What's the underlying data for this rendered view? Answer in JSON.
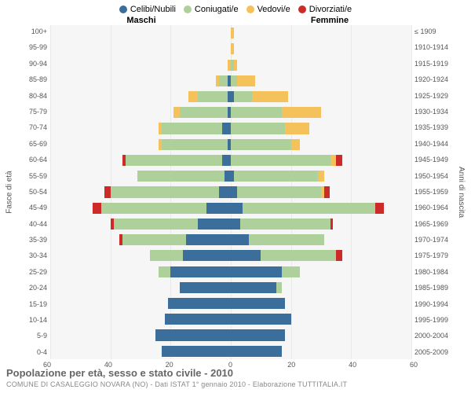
{
  "legend": {
    "items": [
      {
        "label": "Celibi/Nubili",
        "color": "#3b6e9a"
      },
      {
        "label": "Coniugati/e",
        "color": "#aed09b"
      },
      {
        "label": "Vedovi/e",
        "color": "#f5c15a"
      },
      {
        "label": "Divorziati/e",
        "color": "#cc2b27"
      }
    ]
  },
  "headers": {
    "male": "Maschi",
    "female": "Femmine"
  },
  "axis_titles": {
    "left": "Fasce di età",
    "right": "Anni di nascita"
  },
  "footer": {
    "title": "Popolazione per età, sesso e stato civile - 2010",
    "subtitle": "COMUNE DI CASALEGGIO NOVARA (NO) - Dati ISTAT 1° gennaio 2010 - Elaborazione TUTTITALIA.IT"
  },
  "x_axis": {
    "max": 60,
    "ticks": [
      60,
      40,
      20,
      0,
      20,
      40,
      60
    ]
  },
  "style": {
    "background": "#f6f6f6",
    "grid_color": "#e9e9e9",
    "bar_height_ratio": 0.7,
    "center_line_color": "#8aa9c7"
  },
  "rows": [
    {
      "age": "100+",
      "birth": "≤ 1909",
      "male": {
        "celibi": 0,
        "coniugati": 0,
        "vedovi": 0,
        "div": 0
      },
      "female": {
        "celibi": 0,
        "coniugati": 0,
        "vedovi": 1,
        "div": 0
      }
    },
    {
      "age": "95-99",
      "birth": "1910-1914",
      "male": {
        "celibi": 0,
        "coniugati": 0,
        "vedovi": 0,
        "div": 0
      },
      "female": {
        "celibi": 0,
        "coniugati": 0,
        "vedovi": 1,
        "div": 0
      }
    },
    {
      "age": "90-94",
      "birth": "1915-1919",
      "male": {
        "celibi": 0,
        "coniugati": 0,
        "vedovi": 1,
        "div": 0
      },
      "female": {
        "celibi": 0,
        "coniugati": 1,
        "vedovi": 1,
        "div": 0
      }
    },
    {
      "age": "85-89",
      "birth": "1920-1924",
      "male": {
        "celibi": 1,
        "coniugati": 3,
        "vedovi": 1,
        "div": 0
      },
      "female": {
        "celibi": 0,
        "coniugati": 2,
        "vedovi": 6,
        "div": 0
      }
    },
    {
      "age": "80-84",
      "birth": "1925-1929",
      "male": {
        "celibi": 1,
        "coniugati": 10,
        "vedovi": 3,
        "div": 0
      },
      "female": {
        "celibi": 1,
        "coniugati": 6,
        "vedovi": 12,
        "div": 0
      }
    },
    {
      "age": "75-79",
      "birth": "1930-1934",
      "male": {
        "celibi": 1,
        "coniugati": 16,
        "vedovi": 2,
        "div": 0
      },
      "female": {
        "celibi": 0,
        "coniugati": 17,
        "vedovi": 13,
        "div": 0
      }
    },
    {
      "age": "70-74",
      "birth": "1935-1939",
      "male": {
        "celibi": 3,
        "coniugati": 20,
        "vedovi": 1,
        "div": 0
      },
      "female": {
        "celibi": 0,
        "coniugati": 18,
        "vedovi": 8,
        "div": 0
      }
    },
    {
      "age": "65-69",
      "birth": "1940-1944",
      "male": {
        "celibi": 1,
        "coniugati": 22,
        "vedovi": 1,
        "div": 0
      },
      "female": {
        "celibi": 0,
        "coniugati": 20,
        "vedovi": 3,
        "div": 0
      }
    },
    {
      "age": "60-64",
      "birth": "1945-1949",
      "male": {
        "celibi": 3,
        "coniugati": 32,
        "vedovi": 0,
        "div": 1
      },
      "female": {
        "celibi": 0,
        "coniugati": 33,
        "vedovi": 2,
        "div": 2
      }
    },
    {
      "age": "55-59",
      "birth": "1950-1954",
      "male": {
        "celibi": 2,
        "coniugati": 29,
        "vedovi": 0,
        "div": 0
      },
      "female": {
        "celibi": 1,
        "coniugati": 28,
        "vedovi": 2,
        "div": 0
      }
    },
    {
      "age": "50-54",
      "birth": "1955-1959",
      "male": {
        "celibi": 4,
        "coniugati": 36,
        "vedovi": 0,
        "div": 2
      },
      "female": {
        "celibi": 2,
        "coniugati": 28,
        "vedovi": 1,
        "div": 2
      }
    },
    {
      "age": "45-49",
      "birth": "1960-1964",
      "male": {
        "celibi": 8,
        "coniugati": 35,
        "vedovi": 0,
        "div": 3
      },
      "female": {
        "celibi": 4,
        "coniugati": 44,
        "vedovi": 0,
        "div": 3
      }
    },
    {
      "age": "40-44",
      "birth": "1965-1969",
      "male": {
        "celibi": 11,
        "coniugati": 28,
        "vedovi": 0,
        "div": 1
      },
      "female": {
        "celibi": 3,
        "coniugati": 30,
        "vedovi": 0,
        "div": 1
      }
    },
    {
      "age": "35-39",
      "birth": "1970-1974",
      "male": {
        "celibi": 15,
        "coniugati": 21,
        "vedovi": 0,
        "div": 1
      },
      "female": {
        "celibi": 6,
        "coniugati": 25,
        "vedovi": 0,
        "div": 0
      }
    },
    {
      "age": "30-34",
      "birth": "1975-1979",
      "male": {
        "celibi": 16,
        "coniugati": 11,
        "vedovi": 0,
        "div": 0
      },
      "female": {
        "celibi": 10,
        "coniugati": 25,
        "vedovi": 0,
        "div": 2
      }
    },
    {
      "age": "25-29",
      "birth": "1980-1984",
      "male": {
        "celibi": 20,
        "coniugati": 4,
        "vedovi": 0,
        "div": 0
      },
      "female": {
        "celibi": 17,
        "coniugati": 6,
        "vedovi": 0,
        "div": 0
      }
    },
    {
      "age": "20-24",
      "birth": "1985-1989",
      "male": {
        "celibi": 17,
        "coniugati": 0,
        "vedovi": 0,
        "div": 0
      },
      "female": {
        "celibi": 15,
        "coniugati": 2,
        "vedovi": 0,
        "div": 0
      }
    },
    {
      "age": "15-19",
      "birth": "1990-1994",
      "male": {
        "celibi": 21,
        "coniugati": 0,
        "vedovi": 0,
        "div": 0
      },
      "female": {
        "celibi": 18,
        "coniugati": 0,
        "vedovi": 0,
        "div": 0
      }
    },
    {
      "age": "10-14",
      "birth": "1995-1999",
      "male": {
        "celibi": 22,
        "coniugati": 0,
        "vedovi": 0,
        "div": 0
      },
      "female": {
        "celibi": 20,
        "coniugati": 0,
        "vedovi": 0,
        "div": 0
      }
    },
    {
      "age": "5-9",
      "birth": "2000-2004",
      "male": {
        "celibi": 25,
        "coniugati": 0,
        "vedovi": 0,
        "div": 0
      },
      "female": {
        "celibi": 18,
        "coniugati": 0,
        "vedovi": 0,
        "div": 0
      }
    },
    {
      "age": "0-4",
      "birth": "2005-2009",
      "male": {
        "celibi": 23,
        "coniugati": 0,
        "vedovi": 0,
        "div": 0
      },
      "female": {
        "celibi": 17,
        "coniugati": 0,
        "vedovi": 0,
        "div": 0
      }
    }
  ]
}
